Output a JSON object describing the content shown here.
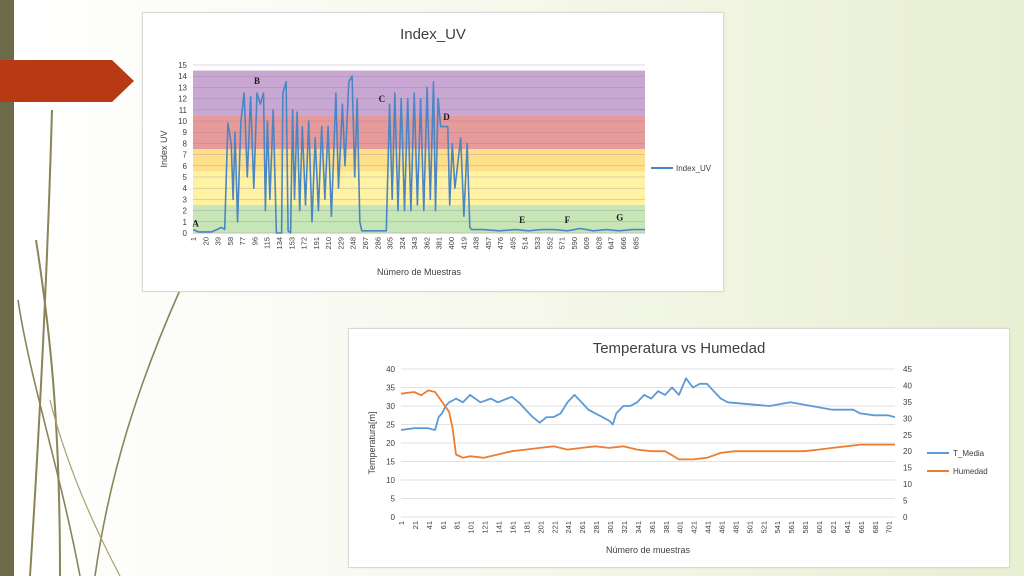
{
  "colors": {
    "accent_arrow": "#b83a14",
    "sidebar": "#6d6a4a",
    "uv_line": "#4a86c4",
    "temp_line": "#5b9bd5",
    "hum_line": "#ed7d31",
    "band_green": "#c6e6b5",
    "band_yellow": "#fff3a3",
    "band_orange": "#ffe08a",
    "band_red": "#e79a9a",
    "band_purple": "#c8a8d2"
  },
  "chart_data": [
    {
      "type": "line",
      "title": "Index_UV",
      "xlabel": "Número de Muestras",
      "ylabel": "Index UV",
      "ylim": [
        0,
        15
      ],
      "yticks": [
        "0",
        "1",
        "2",
        "3",
        "4",
        "5",
        "6",
        "7",
        "8",
        "9",
        "10",
        "11",
        "12",
        "13",
        "14",
        "15"
      ],
      "xticks": [
        "1",
        "20",
        "39",
        "58",
        "77",
        "96",
        "115",
        "134",
        "153",
        "172",
        "191",
        "210",
        "229",
        "248",
        "267",
        "286",
        "305",
        "324",
        "343",
        "362",
        "381",
        "400",
        "419",
        "438",
        "457",
        "476",
        "495",
        "514",
        "533",
        "552",
        "571",
        "590",
        "609",
        "628",
        "647",
        "666",
        "685"
      ],
      "xlim": [
        1,
        700
      ],
      "grid": true,
      "legend": "right",
      "series": [
        {
          "name": "Index_UV",
          "points": [
            [
              1,
              0.3
            ],
            [
              10,
              0.1
            ],
            [
              30,
              0.1
            ],
            [
              45,
              0.5
            ],
            [
              50,
              0.3
            ],
            [
              55,
              9.8
            ],
            [
              60,
              8
            ],
            [
              63,
              3
            ],
            [
              66,
              9
            ],
            [
              70,
              1
            ],
            [
              75,
              10
            ],
            [
              80,
              12.5
            ],
            [
              85,
              5
            ],
            [
              90,
              12.2
            ],
            [
              95,
              4
            ],
            [
              100,
              12.5
            ],
            [
              105,
              11.5
            ],
            [
              110,
              12.5
            ],
            [
              113,
              2
            ],
            [
              116,
              10
            ],
            [
              120,
              3
            ],
            [
              125,
              11
            ],
            [
              130,
              0
            ],
            [
              138,
              0
            ],
            [
              140,
              12.5
            ],
            [
              145,
              13.5
            ],
            [
              148,
              0.2
            ],
            [
              152,
              0
            ],
            [
              155,
              11
            ],
            [
              158,
              3
            ],
            [
              162,
              10.8
            ],
            [
              166,
              2
            ],
            [
              170,
              9.5
            ],
            [
              175,
              2.5
            ],
            [
              180,
              10
            ],
            [
              185,
              1
            ],
            [
              190,
              8.5
            ],
            [
              195,
              2
            ],
            [
              200,
              9.5
            ],
            [
              205,
              3
            ],
            [
              210,
              9.5
            ],
            [
              215,
              1.5
            ],
            [
              222,
              12.5
            ],
            [
              226,
              4
            ],
            [
              232,
              11.5
            ],
            [
              236,
              6
            ],
            [
              242,
              13.5
            ],
            [
              247,
              14
            ],
            [
              251,
              5
            ],
            [
              255,
              12
            ],
            [
              259,
              1
            ],
            [
              262,
              0.2
            ],
            [
              275,
              0.2
            ],
            [
              290,
              0.2
            ],
            [
              300,
              0.2
            ],
            [
              305,
              11.5
            ],
            [
              309,
              3
            ],
            [
              313,
              12.5
            ],
            [
              318,
              2
            ],
            [
              323,
              12
            ],
            [
              328,
              2
            ],
            [
              333,
              12
            ],
            [
              338,
              2
            ],
            [
              343,
              12.5
            ],
            [
              348,
              2.5
            ],
            [
              353,
              12
            ],
            [
              358,
              2
            ],
            [
              363,
              13
            ],
            [
              368,
              3
            ],
            [
              373,
              13.5
            ],
            [
              376,
              2
            ],
            [
              380,
              12
            ],
            [
              384,
              9.5
            ],
            [
              395,
              9.5
            ],
            [
              398,
              2.5
            ],
            [
              402,
              8
            ],
            [
              406,
              4
            ],
            [
              410,
              6
            ],
            [
              415,
              8.5
            ],
            [
              420,
              1.5
            ],
            [
              425,
              8
            ],
            [
              429,
              0.5
            ],
            [
              432,
              0.3
            ],
            [
              450,
              0.3
            ],
            [
              475,
              0.2
            ],
            [
              500,
              0.3
            ],
            [
              520,
              0.2
            ],
            [
              540,
              0.3
            ],
            [
              560,
              0.3
            ],
            [
              580,
              0.2
            ],
            [
              600,
              0.4
            ],
            [
              620,
              0.2
            ],
            [
              640,
              0.3
            ],
            [
              660,
              0.2
            ],
            [
              680,
              0.3
            ],
            [
              700,
              0.3
            ]
          ]
        }
      ],
      "bands": [
        {
          "from": 0,
          "to": 2.5,
          "color": "#c6e6b5"
        },
        {
          "from": 2.5,
          "to": 5.5,
          "color": "#fff3a3"
        },
        {
          "from": 5.5,
          "to": 7.5,
          "color": "#ffe08a"
        },
        {
          "from": 7.5,
          "to": 10.5,
          "color": "#e79a9a"
        },
        {
          "from": 10.5,
          "to": 14.5,
          "color": "#c8a8d2"
        }
      ],
      "annotations": [
        {
          "text": "A",
          "x": 5,
          "y": 0.6
        },
        {
          "text": "B",
          "x": 100,
          "y": 13.3
        },
        {
          "text": "C",
          "x": 293,
          "y": 11.7
        },
        {
          "text": "D",
          "x": 393,
          "y": 10.1
        },
        {
          "text": "E",
          "x": 510,
          "y": 0.9
        },
        {
          "text": "F",
          "x": 580,
          "y": 0.9
        },
        {
          "text": "G",
          "x": 661,
          "y": 1.1
        }
      ]
    },
    {
      "type": "line",
      "title": "Temperatura vs Humedad",
      "xlabel": "Número de muestras",
      "ylabel": "Temperatura[m]",
      "ylim": [
        0,
        40
      ],
      "y2lim": [
        0,
        45
      ],
      "yticks": [
        "0",
        "5",
        "10",
        "15",
        "20",
        "25",
        "30",
        "35",
        "40"
      ],
      "y2ticks": [
        "0",
        "5",
        "10",
        "15",
        "20",
        "25",
        "30",
        "35",
        "40",
        "45"
      ],
      "xticks": [
        "1",
        "21",
        "41",
        "61",
        "81",
        "101",
        "121",
        "141",
        "161",
        "181",
        "201",
        "221",
        "241",
        "261",
        "281",
        "301",
        "321",
        "341",
        "361",
        "381",
        "401",
        "421",
        "441",
        "461",
        "481",
        "501",
        "521",
        "541",
        "561",
        "581",
        "601",
        "621",
        "641",
        "661",
        "681",
        "701"
      ],
      "xlim": [
        1,
        710
      ],
      "grid": true,
      "legend": "right",
      "series": [
        {
          "name": "T_Media",
          "axis": "left",
          "points": [
            [
              1,
              23.5
            ],
            [
              20,
              24
            ],
            [
              40,
              24
            ],
            [
              50,
              23.5
            ],
            [
              55,
              27
            ],
            [
              60,
              28
            ],
            [
              65,
              30
            ],
            [
              70,
              31
            ],
            [
              75,
              31.5
            ],
            [
              80,
              32
            ],
            [
              90,
              31
            ],
            [
              100,
              33
            ],
            [
              115,
              31
            ],
            [
              130,
              32
            ],
            [
              140,
              31
            ],
            [
              160,
              32.5
            ],
            [
              170,
              31
            ],
            [
              180,
              29
            ],
            [
              190,
              27
            ],
            [
              200,
              25.5
            ],
            [
              210,
              27
            ],
            [
              220,
              27
            ],
            [
              230,
              28
            ],
            [
              240,
              31
            ],
            [
              250,
              33
            ],
            [
              260,
              31
            ],
            [
              270,
              29
            ],
            [
              280,
              28
            ],
            [
              290,
              27
            ],
            [
              300,
              26
            ],
            [
              305,
              25
            ],
            [
              310,
              28
            ],
            [
              320,
              30
            ],
            [
              330,
              30
            ],
            [
              340,
              31
            ],
            [
              350,
              33
            ],
            [
              360,
              32
            ],
            [
              370,
              34
            ],
            [
              380,
              33
            ],
            [
              390,
              35
            ],
            [
              400,
              33
            ],
            [
              410,
              37.5
            ],
            [
              420,
              35
            ],
            [
              430,
              36
            ],
            [
              440,
              36
            ],
            [
              450,
              34
            ],
            [
              460,
              32
            ],
            [
              470,
              31
            ],
            [
              500,
              30.5
            ],
            [
              530,
              30
            ],
            [
              560,
              31
            ],
            [
              590,
              30
            ],
            [
              620,
              29
            ],
            [
              650,
              29
            ],
            [
              660,
              28
            ],
            [
              680,
              27.5
            ],
            [
              700,
              27.5
            ],
            [
              710,
              27
            ]
          ]
        },
        {
          "name": "Humedad",
          "axis": "right",
          "points": [
            [
              1,
              37.5
            ],
            [
              20,
              38
            ],
            [
              30,
              37
            ],
            [
              40,
              38.5
            ],
            [
              50,
              38
            ],
            [
              60,
              35
            ],
            [
              70,
              32
            ],
            [
              75,
              27
            ],
            [
              80,
              19
            ],
            [
              90,
              18
            ],
            [
              100,
              18.5
            ],
            [
              120,
              18
            ],
            [
              140,
              19
            ],
            [
              160,
              20
            ],
            [
              180,
              20.5
            ],
            [
              200,
              21
            ],
            [
              220,
              21.5
            ],
            [
              240,
              20.5
            ],
            [
              260,
              21
            ],
            [
              280,
              21.5
            ],
            [
              300,
              21
            ],
            [
              320,
              21.5
            ],
            [
              340,
              20.5
            ],
            [
              360,
              20
            ],
            [
              380,
              20
            ],
            [
              400,
              17.5
            ],
            [
              420,
              17.5
            ],
            [
              440,
              18
            ],
            [
              460,
              19.5
            ],
            [
              480,
              20
            ],
            [
              500,
              20
            ],
            [
              520,
              20
            ],
            [
              540,
              20
            ],
            [
              560,
              20
            ],
            [
              580,
              20
            ],
            [
              600,
              20.5
            ],
            [
              620,
              21
            ],
            [
              640,
              21.5
            ],
            [
              660,
              22
            ],
            [
              680,
              22
            ],
            [
              700,
              22
            ],
            [
              710,
              22
            ]
          ]
        }
      ]
    }
  ]
}
